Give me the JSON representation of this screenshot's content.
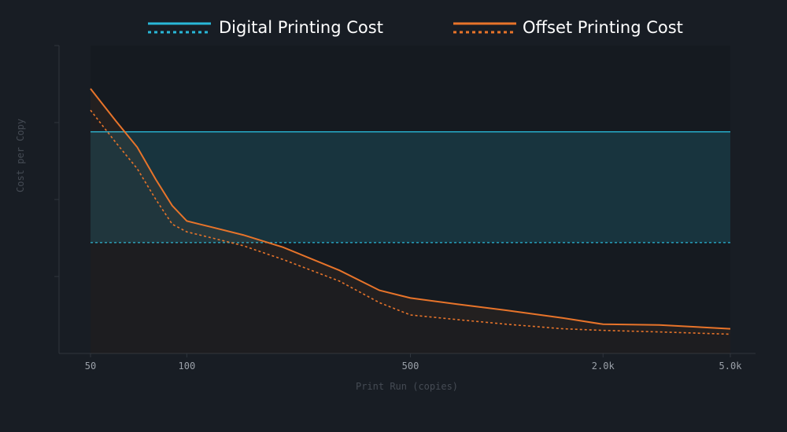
{
  "chart_data": {
    "type": "line",
    "title": "",
    "xlabel": "Print Run (copies)",
    "ylabel": "Cost per Copy",
    "x_scale": "log",
    "x_ticks": [
      50,
      100,
      500,
      2000,
      5000
    ],
    "x_tick_labels": [
      "50",
      "100",
      "500",
      "2.0k",
      "5.0k"
    ],
    "xlim": [
      50,
      5000
    ],
    "ylim": [
      0,
      4
    ],
    "y_tick_labels": [
      "",
      "",
      "",
      ""
    ],
    "legend": {
      "position": "top-center"
    },
    "grid": false,
    "series": [
      {
        "name": "Digital Printing Cost",
        "color": "#29b8d8",
        "upper": {
          "x": [
            50,
            5000
          ],
          "y": [
            2.88,
            2.88
          ]
        },
        "lower": {
          "x": [
            50,
            5000
          ],
          "y": [
            1.44,
            1.44
          ]
        }
      },
      {
        "name": "Offset Printing Cost",
        "color": "#e8742a",
        "upper": {
          "x": [
            50,
            55,
            60,
            70,
            80,
            90,
            100,
            120,
            150,
            200,
            300,
            400,
            500,
            700,
            1000,
            1500,
            2000,
            3000,
            5000
          ],
          "y": [
            3.44,
            3.22,
            3.02,
            2.68,
            2.26,
            1.92,
            1.72,
            1.64,
            1.54,
            1.38,
            1.08,
            0.82,
            0.72,
            0.64,
            0.56,
            0.46,
            0.38,
            0.37,
            0.32
          ]
        },
        "lower": {
          "x": [
            50,
            55,
            60,
            70,
            80,
            90,
            100,
            120,
            150,
            200,
            300,
            400,
            500,
            700,
            1000,
            1500,
            2000,
            3000,
            5000
          ],
          "y": [
            3.16,
            2.94,
            2.74,
            2.4,
            2.0,
            1.68,
            1.58,
            1.5,
            1.4,
            1.22,
            0.94,
            0.66,
            0.5,
            0.44,
            0.38,
            0.32,
            0.3,
            0.28,
            0.25
          ]
        }
      }
    ]
  }
}
